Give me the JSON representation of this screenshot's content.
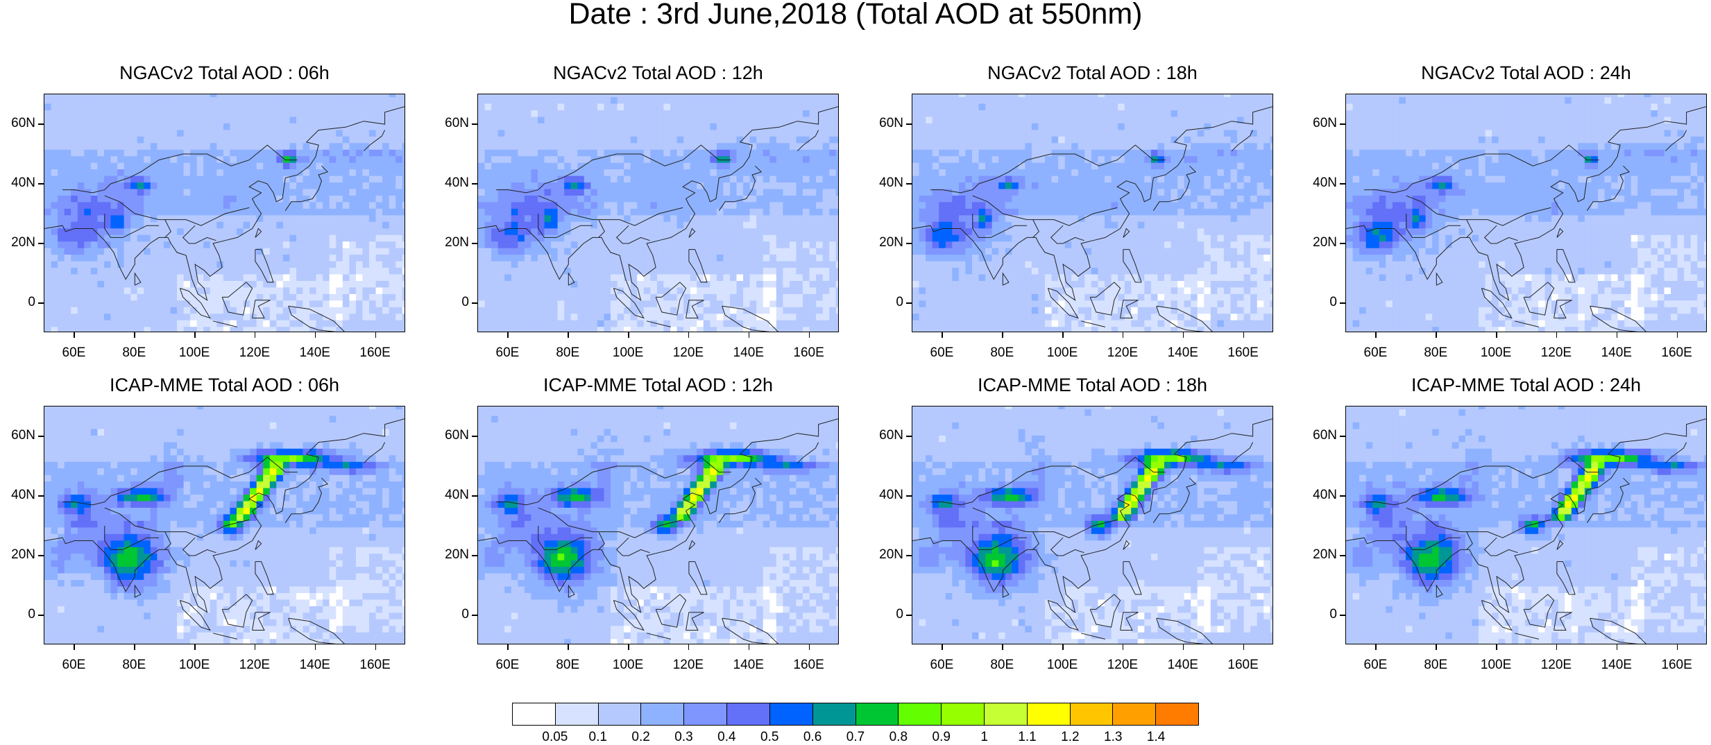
{
  "title": "Date : 3rd June,2018 (Total AOD at 550nm)",
  "panels": [
    {
      "title": "NGACv2 Total AOD : 06h",
      "model": "ngac",
      "hour": 6
    },
    {
      "title": "NGACv2 Total AOD : 12h",
      "model": "ngac",
      "hour": 12
    },
    {
      "title": "NGACv2 Total AOD : 18h",
      "model": "ngac",
      "hour": 18
    },
    {
      "title": "NGACv2 Total AOD : 24h",
      "model": "ngac",
      "hour": 24
    },
    {
      "title": "ICAP-MME Total AOD : 06h",
      "model": "icap",
      "hour": 6
    },
    {
      "title": "ICAP-MME Total AOD : 12h",
      "model": "icap",
      "hour": 12
    },
    {
      "title": "ICAP-MME Total AOD : 18h",
      "model": "icap",
      "hour": 18
    },
    {
      "title": "ICAP-MME Total AOD : 24h",
      "model": "icap",
      "hour": 24
    }
  ],
  "lat_ticks": [
    "60N",
    "40N",
    "20N",
    "0"
  ],
  "lon_ticks": [
    "60E",
    "80E",
    "100E",
    "120E",
    "140E",
    "160E"
  ],
  "colorbar": {
    "levels": [
      "0.05",
      "0.1",
      "0.2",
      "0.3",
      "0.4",
      "0.5",
      "0.6",
      "0.7",
      "0.8",
      "0.9",
      "1",
      "1.1",
      "1.2",
      "1.3",
      "1.4"
    ],
    "colors": [
      "#ffffff",
      "#d6e2ff",
      "#b5c9ff",
      "#8eb2ff",
      "#7f96ff",
      "#6370f8",
      "#0063ff",
      "#009696",
      "#00c633",
      "#63ff00",
      "#96ff00",
      "#c6ff33",
      "#ffff00",
      "#ffc600",
      "#ffa000",
      "#ff7c00",
      "#ff1900"
    ]
  }
}
